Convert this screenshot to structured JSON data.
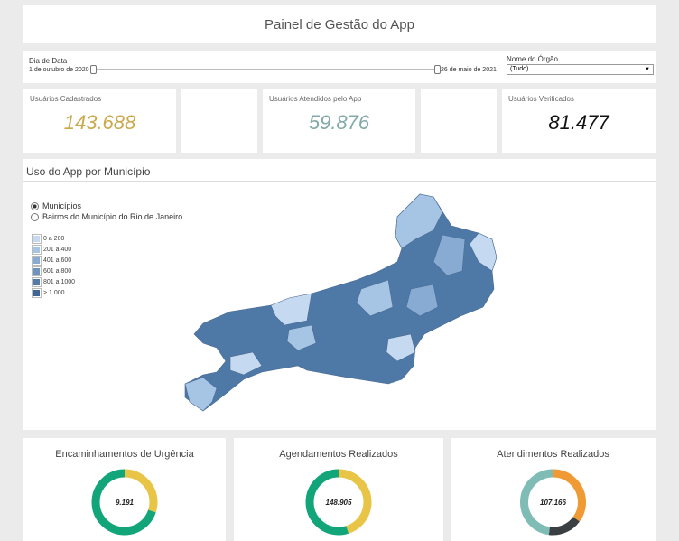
{
  "header": {
    "title": "Painel de Gestão do App"
  },
  "filters": {
    "date": {
      "label": "Dia de Data",
      "start": "1 de outubro de 2020",
      "end": "26 de maio de 2021"
    },
    "org": {
      "label": "Nome do Órgão",
      "selected": "(Tudo)"
    }
  },
  "kpis": [
    {
      "label": "Usuários Cadastrados",
      "value": "143.688",
      "color": "#c9a94a"
    },
    {
      "label": "Usuários Atendidos pelo App",
      "value": "59.876",
      "color": "#82aaa6"
    },
    {
      "label": "Usuários Verificados",
      "value": "81.477",
      "color": "#111111"
    }
  ],
  "map": {
    "title": "Uso do App por Município",
    "options": [
      {
        "label": "Municípios",
        "selected": true
      },
      {
        "label": "Bairros do Município do Rio de Janeiro",
        "selected": false
      }
    ],
    "legend": [
      {
        "label": "0 a 200",
        "color": "#c5daf0"
      },
      {
        "label": "201 a 400",
        "color": "#a6c4e4"
      },
      {
        "label": "401 a 600",
        "color": "#87abd3"
      },
      {
        "label": "601 a 800",
        "color": "#6d93bf"
      },
      {
        "label": "801 a 1000",
        "color": "#537aa8"
      },
      {
        "label": "> 1.000",
        "color": "#3f6594"
      }
    ]
  },
  "donuts": [
    {
      "title": "Encaminhamentos de Urgência",
      "center": "9.191",
      "segments": [
        {
          "color": "#e8c547",
          "value": 30
        },
        {
          "color": "#12a579",
          "value": 70
        }
      ]
    },
    {
      "title": "Agendamentos Realizados",
      "center": "148.905",
      "segments": [
        {
          "color": "#e8c547",
          "value": 45
        },
        {
          "color": "#12a579",
          "value": 55
        }
      ]
    },
    {
      "title": "Atendimentos Realizados",
      "center": "107.166",
      "segments": [
        {
          "color": "#ef9a35",
          "value": 35
        },
        {
          "color": "#3a3f44",
          "value": 17
        },
        {
          "color": "#7fbcb5",
          "value": 48
        }
      ]
    }
  ]
}
